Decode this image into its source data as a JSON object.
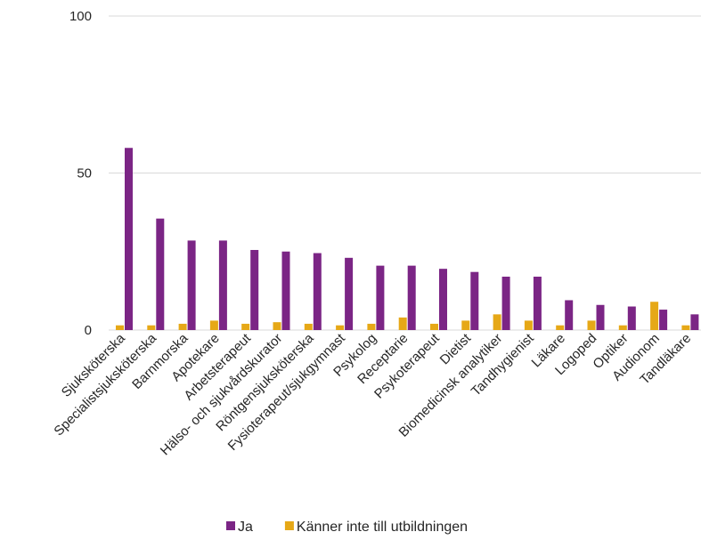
{
  "chart_data": {
    "type": "bar",
    "categories": [
      "Sjuksköterska",
      "Specialistsjuksköterska",
      "Barnmorska",
      "Apotekare",
      "Arbetsterapeut",
      "Hälso- och sjukvårdskurator",
      "Röntgensjuksköterska",
      "Fysioterapeut/sjukgymnast",
      "Psykolog",
      "Receptarie",
      "Psykoterapeut",
      "Dietist",
      "Biomedicinsk analytiker",
      "Tandhygienist",
      "Läkare",
      "Logoped",
      "Optiker",
      "Audionom",
      "Tandläkare"
    ],
    "series": [
      {
        "name": "Ja",
        "color": "#7b2585",
        "values": [
          58,
          35.5,
          28.5,
          28.5,
          25.5,
          25,
          24.5,
          23,
          20.5,
          20.5,
          19.5,
          18.5,
          17,
          17,
          9.5,
          8,
          7.5,
          6.5,
          5
        ]
      },
      {
        "name": "Känner inte till utbildningen",
        "color": "#e6a817",
        "values": [
          1.5,
          1.5,
          2,
          3,
          2,
          2.5,
          2,
          1.5,
          2,
          4,
          2,
          3,
          5,
          3,
          1.5,
          3,
          1.5,
          9,
          1.5
        ]
      }
    ],
    "ylim": [
      0,
      100
    ],
    "yticks": [
      0,
      50,
      100
    ],
    "grid": true,
    "legend": "bottom"
  }
}
